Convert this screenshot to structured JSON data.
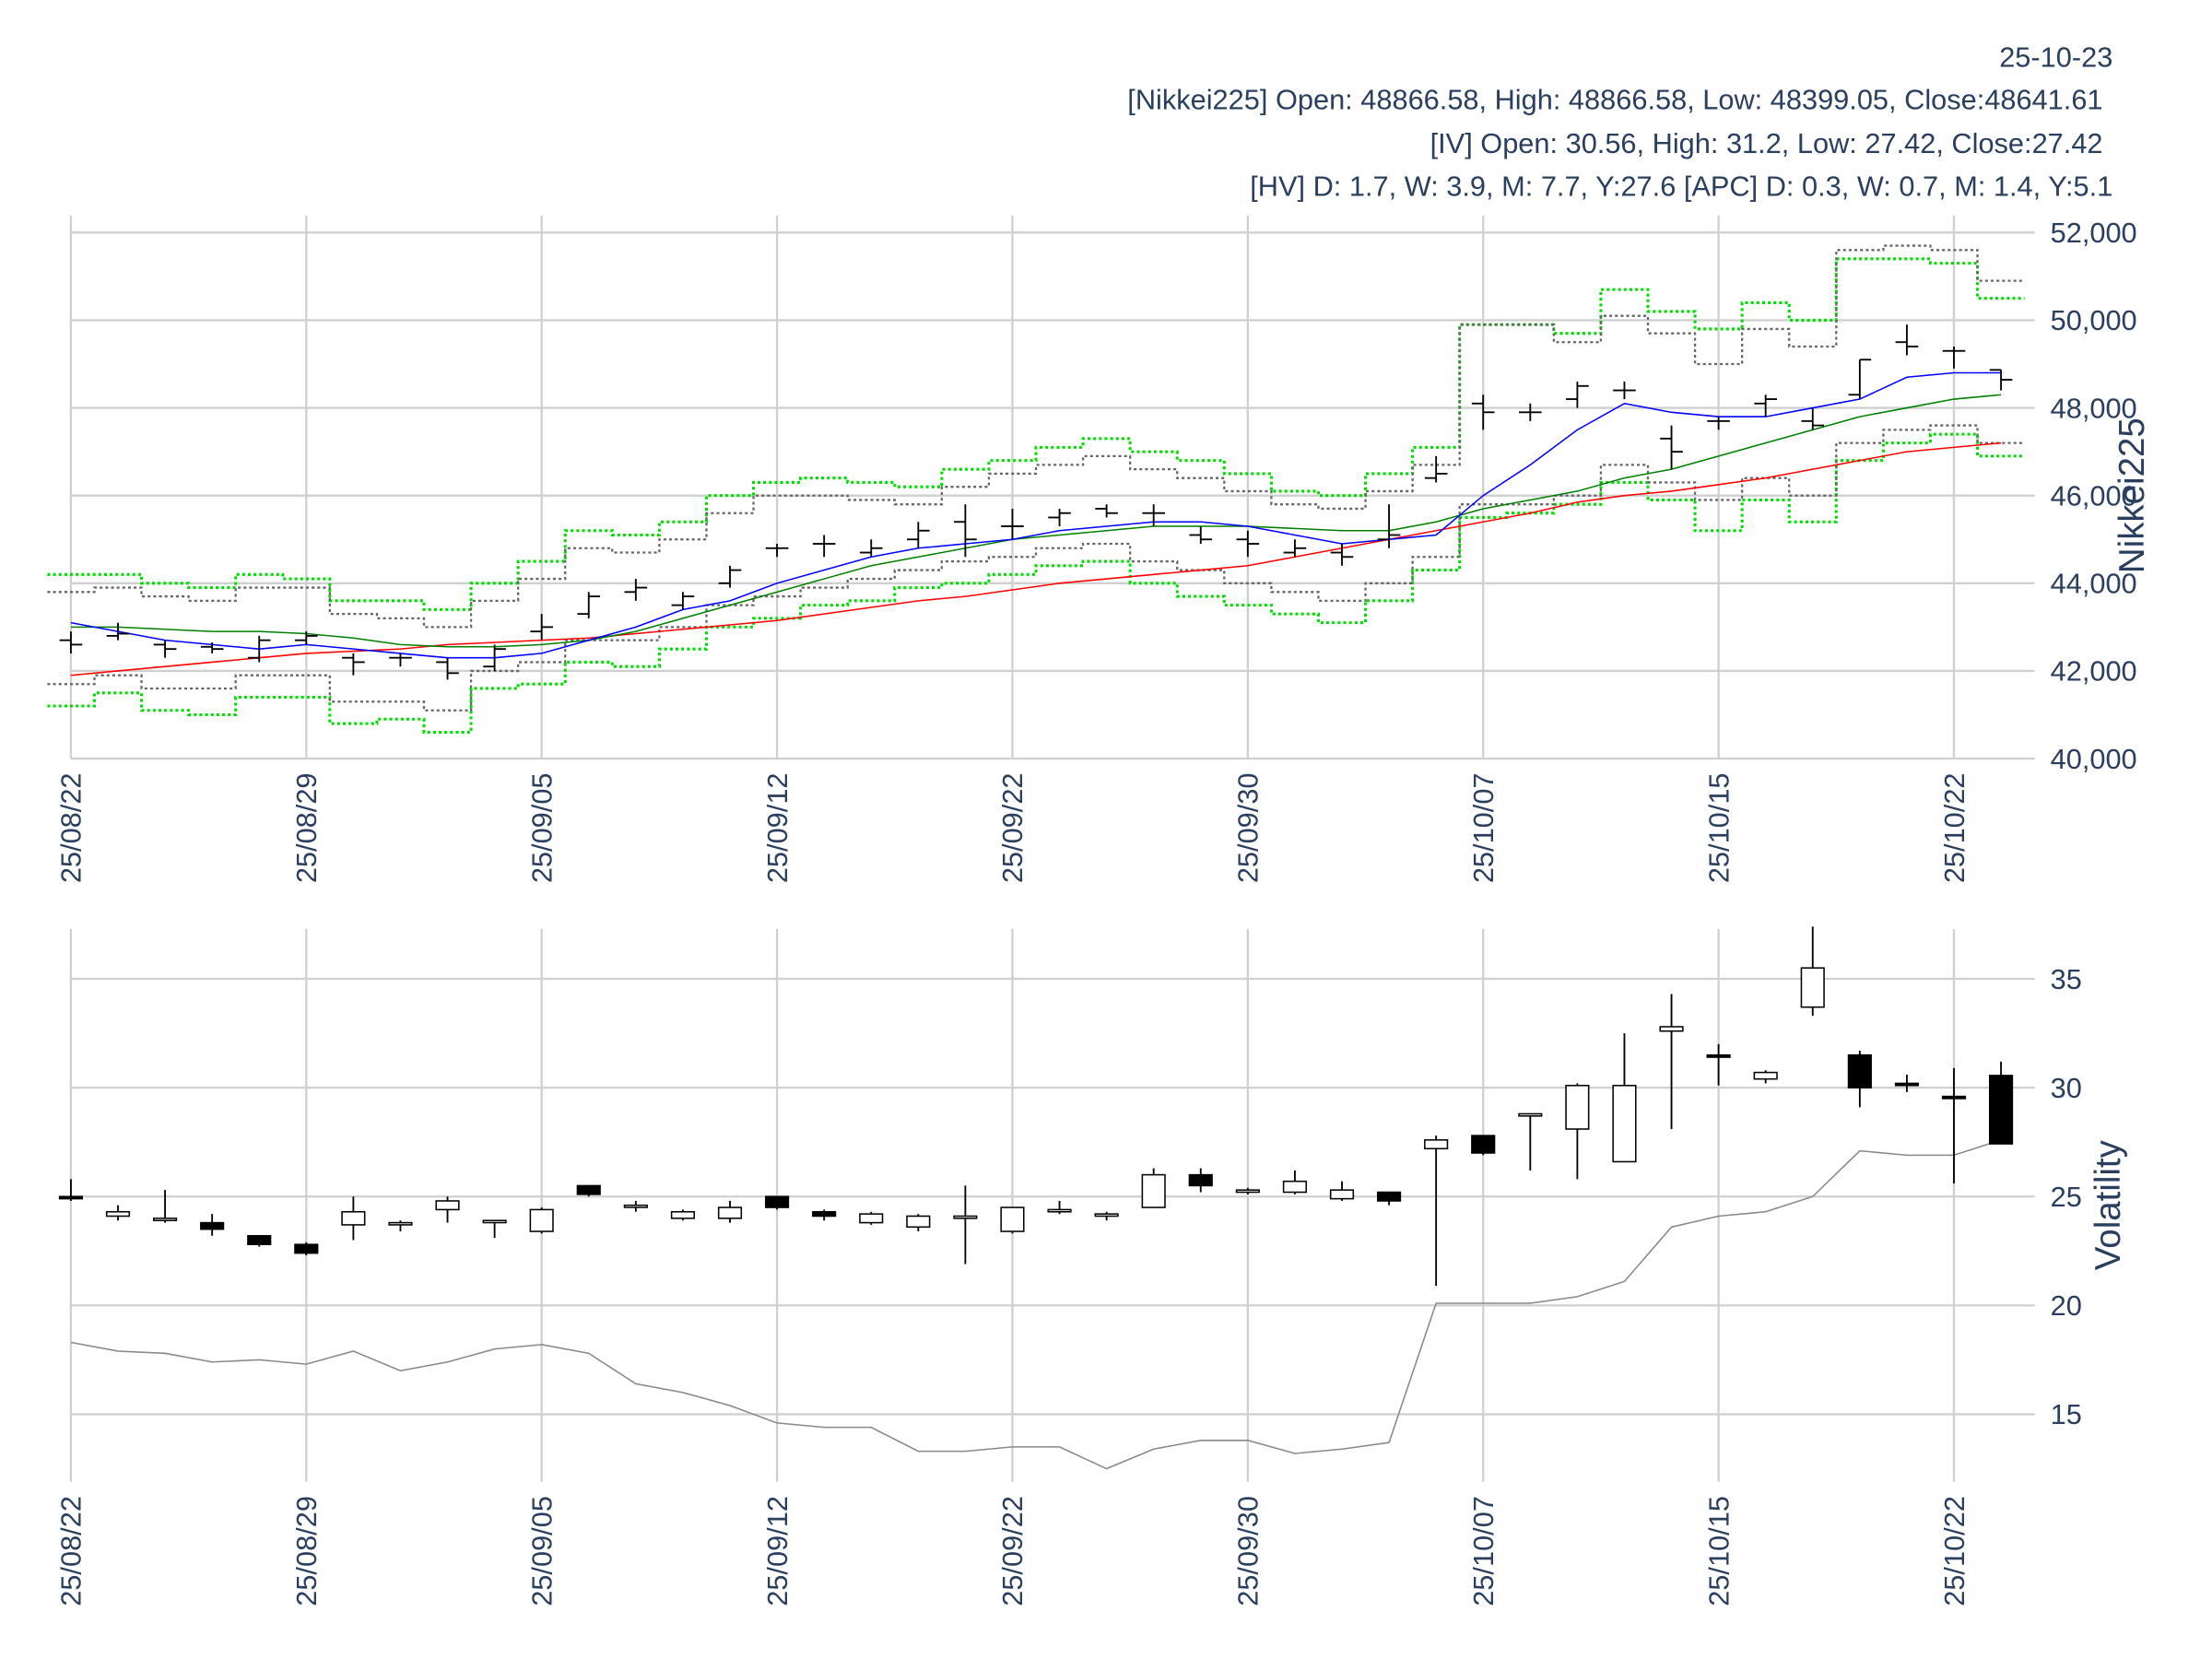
{
  "chart_data": [
    {
      "type": "ohlc",
      "annotations": [
        "25-10-23",
        "[Nikkei225] Open: 48866.58, High: 48866.58, Low: 48399.05, Close:48641.61",
        "[IV] Open: 30.56, High: 31.2, Low: 27.42, Close:27.42",
        "[HV] D: 1.7, W: 3.9, M: 7.7, Y:27.6 [APC] D: 0.3, W: 0.7, M: 1.4, Y:5.1"
      ],
      "categories": [
        "25/08/22",
        null,
        null,
        null,
        null,
        "25/08/29",
        null,
        null,
        null,
        null,
        "25/09/05",
        null,
        null,
        null,
        null,
        "25/09/12",
        null,
        null,
        null,
        null,
        "25/09/22",
        null,
        null,
        null,
        null,
        "25/09/30",
        null,
        null,
        null,
        null,
        "25/10/07",
        null,
        null,
        null,
        null,
        "25/10/15",
        null,
        null,
        null,
        null,
        "25/10/22",
        null
      ],
      "open": [
        42700,
        42800,
        42600,
        42550,
        42300,
        42700,
        42300,
        42300,
        42200,
        42100,
        42900,
        43300,
        43800,
        43500,
        44000,
        44800,
        44900,
        44700,
        45000,
        45400,
        45300,
        45500,
        45700,
        45600,
        45100,
        45000,
        44700,
        44700,
        45000,
        46400,
        48100,
        47900,
        48200,
        48400,
        47300,
        47700,
        48100,
        47700,
        48300,
        49500,
        49300,
        48866.58
      ],
      "high": [
        42900,
        43100,
        42700,
        42650,
        42800,
        42900,
        42400,
        42400,
        42300,
        42600,
        43300,
        43800,
        44100,
        43800,
        44400,
        44900,
        45100,
        45000,
        45400,
        45800,
        45700,
        45700,
        45800,
        45800,
        45300,
        45200,
        45000,
        44900,
        45800,
        46900,
        48300,
        48100,
        48600,
        48600,
        47600,
        47800,
        48300,
        48000,
        49100,
        49900,
        49400,
        48866.58
      ],
      "low": [
        42400,
        42700,
        42300,
        42400,
        42200,
        42600,
        41900,
        42100,
        41800,
        42000,
        42700,
        43200,
        43600,
        43400,
        43900,
        44600,
        44600,
        44600,
        44800,
        44600,
        45000,
        45300,
        45500,
        45300,
        44900,
        44600,
        44600,
        44400,
        44800,
        46300,
        47500,
        47700,
        48000,
        48200,
        46600,
        47500,
        47800,
        47500,
        48200,
        49200,
        48900,
        48399.05
      ],
      "close": [
        42600,
        42850,
        42500,
        42500,
        42700,
        42800,
        42200,
        42300,
        41950,
        42500,
        43000,
        43700,
        43900,
        43700,
        44300,
        44800,
        44900,
        44800,
        45200,
        45000,
        45300,
        45600,
        45600,
        45600,
        45000,
        44900,
        44800,
        44600,
        45100,
        46500,
        47900,
        47900,
        48500,
        48400,
        47000,
        47700,
        48200,
        47600,
        49100,
        49400,
        49300,
        48641.61
      ],
      "bar_color": "#000000",
      "lines": [
        {
          "color": "#00dd00",
          "style": "dotted",
          "step": true,
          "values": [
            44200,
            44200,
            44000,
            43900,
            44200,
            44100,
            43600,
            43600,
            43400,
            44000,
            44500,
            45200,
            45100,
            45400,
            46000,
            46300,
            46400,
            46300,
            46200,
            46600,
            46800,
            47100,
            47300,
            47000,
            46800,
            46500,
            46100,
            46000,
            46500,
            47100,
            49900,
            49900,
            49700,
            50700,
            50200,
            49800,
            50400,
            50000,
            51400,
            51400,
            51300,
            50500
          ]
        },
        {
          "color": "#00dd00",
          "style": "dotted",
          "step": true,
          "values": [
            41200,
            41500,
            41100,
            41000,
            41400,
            41400,
            40800,
            40900,
            40600,
            41600,
            41700,
            42200,
            42100,
            42500,
            43000,
            43200,
            43500,
            43600,
            43900,
            44000,
            44200,
            44400,
            44500,
            44000,
            43700,
            43500,
            43300,
            43100,
            43600,
            44300,
            45500,
            45600,
            45800,
            46300,
            45900,
            45200,
            45900,
            45400,
            46800,
            47200,
            47400,
            46900
          ]
        },
        {
          "color": "#666666",
          "style": "dotted",
          "step": true,
          "values": [
            43800,
            43900,
            43700,
            43600,
            43900,
            43900,
            43300,
            43200,
            43000,
            43600,
            44100,
            44800,
            44700,
            45000,
            45600,
            46000,
            46000,
            45900,
            45800,
            46200,
            46500,
            46700,
            46900,
            46600,
            46400,
            46100,
            45800,
            45700,
            46100,
            46700,
            49900,
            49900,
            49500,
            50100,
            49700,
            49000,
            49800,
            49400,
            51600,
            51700,
            51600,
            50900
          ]
        },
        {
          "color": "#666666",
          "style": "dotted",
          "step": true,
          "values": [
            41700,
            41900,
            41600,
            41600,
            41900,
            41900,
            41300,
            41300,
            41100,
            42000,
            42200,
            42700,
            42700,
            43000,
            43500,
            43700,
            43900,
            44100,
            44300,
            44500,
            44600,
            44800,
            44900,
            44500,
            44300,
            44000,
            43800,
            43600,
            44000,
            44600,
            45800,
            45800,
            46000,
            46700,
            46300,
            45900,
            46400,
            46000,
            47200,
            47500,
            47600,
            47200
          ]
        },
        {
          "color": "#ff0000",
          "style": "solid",
          "step": false,
          "values": [
            41900,
            42000,
            42100,
            42200,
            42300,
            42400,
            42450,
            42500,
            42600,
            42650,
            42700,
            42750,
            42850,
            42950,
            43050,
            43150,
            43300,
            43450,
            43600,
            43700,
            43850,
            44000,
            44100,
            44200,
            44300,
            44400,
            44600,
            44800,
            45000,
            45200,
            45400,
            45600,
            45850,
            46000,
            46100,
            46250,
            46400,
            46600,
            46800,
            47000,
            47100,
            47200
          ]
        },
        {
          "color": "#008000",
          "style": "solid",
          "step": false,
          "values": [
            43000,
            43000,
            42950,
            42900,
            42900,
            42850,
            42750,
            42600,
            42550,
            42550,
            42600,
            42700,
            42900,
            43200,
            43500,
            43800,
            44100,
            44400,
            44600,
            44800,
            45000,
            45100,
            45200,
            45300,
            45300,
            45300,
            45250,
            45200,
            45200,
            45400,
            45700,
            45900,
            46100,
            46400,
            46600,
            46900,
            47200,
            47500,
            47800,
            48000,
            48200,
            48300
          ]
        },
        {
          "color": "#0000ff",
          "style": "solid",
          "step": false,
          "values": [
            43100,
            42900,
            42700,
            42600,
            42500,
            42600,
            42500,
            42400,
            42300,
            42300,
            42400,
            42700,
            43000,
            43400,
            43600,
            44000,
            44300,
            44600,
            44800,
            44900,
            45000,
            45200,
            45300,
            45400,
            45400,
            45300,
            45100,
            44900,
            45000,
            45100,
            46000,
            46700,
            47500,
            48100,
            47900,
            47800,
            47800,
            48000,
            48200,
            48700,
            48800,
            48800
          ]
        }
      ],
      "ylim": [
        40000,
        52000
      ],
      "yticks": [
        {
          "value": 40000,
          "label": "40,000"
        },
        {
          "value": 42000,
          "label": "42,000"
        },
        {
          "value": 44000,
          "label": "44,000"
        },
        {
          "value": 46000,
          "label": "46,000"
        },
        {
          "value": 48000,
          "label": "48,000"
        },
        {
          "value": 50000,
          "label": "50,000"
        },
        {
          "value": 52000,
          "label": "52,000"
        }
      ],
      "y_label": "Nikkei225",
      "grid": true
    },
    {
      "type": "candlestick",
      "categories": [
        "25/08/22",
        null,
        null,
        null,
        null,
        "25/08/29",
        null,
        null,
        null,
        null,
        "25/09/05",
        null,
        null,
        null,
        null,
        "25/09/12",
        null,
        null,
        null,
        null,
        "25/09/22",
        null,
        null,
        null,
        null,
        "25/09/30",
        null,
        null,
        null,
        null,
        "25/10/07",
        null,
        null,
        null,
        null,
        "25/10/15",
        null,
        null,
        null,
        null,
        "25/10/22",
        null
      ],
      "open": [
        25.0,
        24.1,
        23.9,
        23.8,
        23.2,
        22.8,
        23.7,
        23.7,
        24.4,
        23.9,
        23.4,
        25.5,
        24.6,
        24.0,
        24.0,
        25.0,
        24.3,
        23.8,
        23.6,
        24.0,
        23.4,
        24.3,
        24.1,
        24.5,
        26.0,
        25.2,
        25.2,
        24.9,
        25.2,
        27.2,
        27.8,
        28.7,
        28.1,
        26.6,
        32.6,
        31.5,
        30.4,
        33.7,
        31.5,
        30.2,
        29.6,
        30.56
      ],
      "high": [
        25.8,
        24.6,
        25.3,
        24.2,
        23.2,
        22.9,
        25.0,
        23.9,
        25.0,
        23.9,
        24.5,
        25.5,
        24.8,
        24.4,
        24.8,
        25.0,
        24.4,
        24.3,
        24.2,
        25.5,
        24.5,
        24.8,
        24.3,
        26.3,
        26.3,
        25.4,
        26.2,
        25.7,
        25.2,
        27.8,
        27.8,
        28.8,
        30.2,
        32.5,
        34.3,
        32.0,
        30.8,
        37.4,
        31.7,
        30.6,
        30.9,
        31.2
      ],
      "low": [
        24.8,
        23.9,
        23.8,
        23.2,
        22.7,
        22.3,
        23.0,
        23.4,
        23.8,
        23.1,
        23.3,
        25.0,
        24.3,
        23.9,
        23.8,
        24.4,
        23.9,
        23.7,
        23.4,
        21.9,
        23.3,
        24.2,
        23.9,
        24.5,
        25.2,
        25.1,
        25.1,
        24.8,
        24.6,
        20.9,
        26.9,
        26.2,
        25.8,
        26.6,
        28.1,
        30.1,
        30.2,
        33.3,
        29.1,
        29.8,
        25.6,
        27.42
      ],
      "close": [
        24.9,
        24.3,
        24.0,
        23.5,
        22.8,
        22.4,
        24.3,
        23.8,
        24.8,
        23.9,
        24.4,
        25.1,
        24.6,
        24.3,
        24.5,
        24.5,
        24.1,
        24.2,
        24.1,
        24.1,
        24.5,
        24.4,
        24.2,
        26.0,
        25.5,
        25.3,
        25.7,
        25.3,
        24.8,
        27.6,
        27.0,
        28.8,
        30.1,
        30.1,
        32.8,
        31.4,
        30.7,
        35.5,
        30.0,
        30.1,
        29.5,
        27.42
      ],
      "increasing_color": "#ffffff",
      "decreasing_color": "#000000",
      "lines": [
        {
          "color": "#888888",
          "style": "solid",
          "step": false,
          "values": [
            18.3,
            17.9,
            17.8,
            17.4,
            17.5,
            17.3,
            17.9,
            17.0,
            17.4,
            18.0,
            18.2,
            17.8,
            16.4,
            16.0,
            15.4,
            14.6,
            14.4,
            14.4,
            13.3,
            13.3,
            13.5,
            13.5,
            12.5,
            13.4,
            13.8,
            13.8,
            13.2,
            13.4,
            13.7,
            20.1,
            20.1,
            20.1,
            20.4,
            21.1,
            23.6,
            24.1,
            24.3,
            25.0,
            27.1,
            26.9,
            26.9,
            27.6
          ]
        }
      ],
      "ylim": [
        11.9,
        37.3
      ],
      "yticks": [
        15,
        20,
        25,
        30,
        35
      ],
      "y_label": "Volatility",
      "grid": true
    }
  ]
}
